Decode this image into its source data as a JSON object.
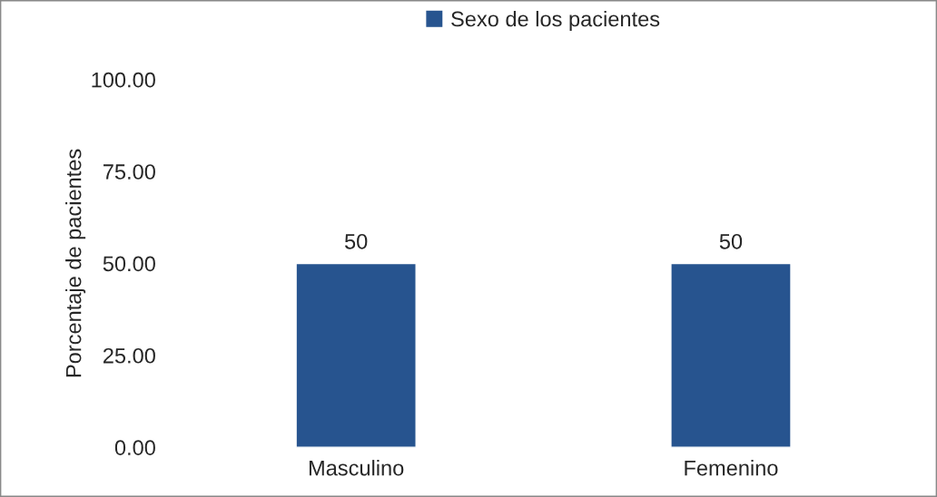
{
  "chart_data": {
    "type": "bar",
    "ylabel": "Porcentaje de pacientes",
    "categories": [
      "Masculino",
      "Femenino"
    ],
    "series": [
      {
        "name": "Sexo de los pacientes",
        "color": "#27548f",
        "values": [
          50,
          50
        ]
      }
    ],
    "ylim": [
      0,
      100
    ],
    "yticks": [
      {
        "value": 0,
        "label": "0.00"
      },
      {
        "value": 25,
        "label": "25.00"
      },
      {
        "value": 50,
        "label": "50.00"
      },
      {
        "value": 75,
        "label": "75.00"
      },
      {
        "value": 100,
        "label": "100.00"
      }
    ],
    "data_labels": true,
    "legend": "top",
    "grid": false
  }
}
